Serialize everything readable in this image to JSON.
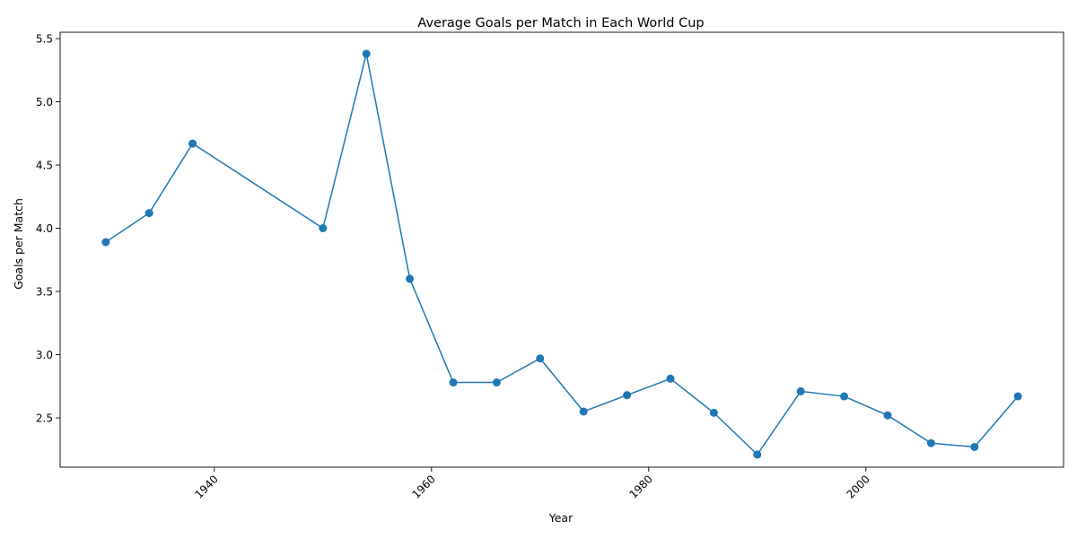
{
  "chart_data": {
    "type": "line",
    "title": "Average Goals per Match in Each World Cup",
    "xlabel": "Year",
    "ylabel": "Goals per Match",
    "xlim": [
      1925.8,
      2018.2
    ],
    "ylim": [
      2.11,
      5.55
    ],
    "x_ticks": [
      1940,
      1960,
      1980,
      2000
    ],
    "y_ticks": [
      2.5,
      3.0,
      3.5,
      4.0,
      4.5,
      5.0,
      5.5
    ],
    "x_tick_labels": [
      "1940",
      "1960",
      "1980",
      "2000"
    ],
    "y_tick_labels": [
      "2.5",
      "3.0",
      "3.5",
      "4.0",
      "4.5",
      "5.0",
      "5.5"
    ],
    "x_tick_rotation": 45,
    "grid": false,
    "marker": "circle",
    "line_color": "#1f77b4",
    "series": [
      {
        "x": [
          1930,
          1934,
          1938,
          1950,
          1954,
          1958,
          1962,
          1966,
          1970,
          1974,
          1978,
          1982,
          1986,
          1990,
          1994,
          1998,
          2002,
          2006,
          2010,
          2014
        ],
        "y": [
          3.89,
          4.12,
          4.67,
          4.0,
          5.38,
          3.6,
          2.78,
          2.78,
          2.97,
          2.55,
          2.68,
          2.81,
          2.54,
          2.21,
          2.71,
          2.67,
          2.52,
          2.3,
          2.27,
          2.67
        ]
      }
    ]
  }
}
